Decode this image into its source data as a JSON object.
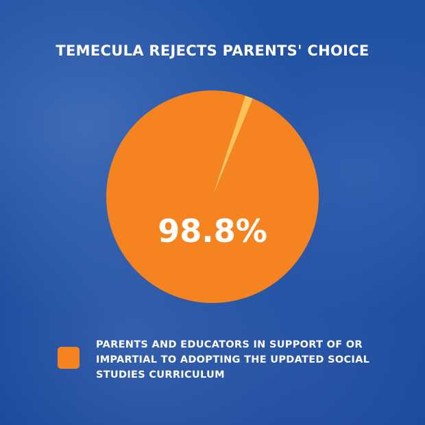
{
  "title": "TEMECULA REJECTS PARENTS' CHOICE",
  "chart_data": {
    "type": "pie",
    "title": "TEMECULA REJECTS PARENTS' CHOICE",
    "slices": [
      {
        "label": "PARENTS AND EDUCATORS IN SUPPORT OF OR IMPARTIAL TO ADOPTING THE UPDATED SOCIAL STUDIES CURRICULUM",
        "value": 98.8,
        "color": "#f5831f"
      },
      {
        "label": "",
        "value": 1.2,
        "color": "#fdc257"
      }
    ],
    "data_label": "98.8%",
    "legend": "bottom-left"
  }
}
